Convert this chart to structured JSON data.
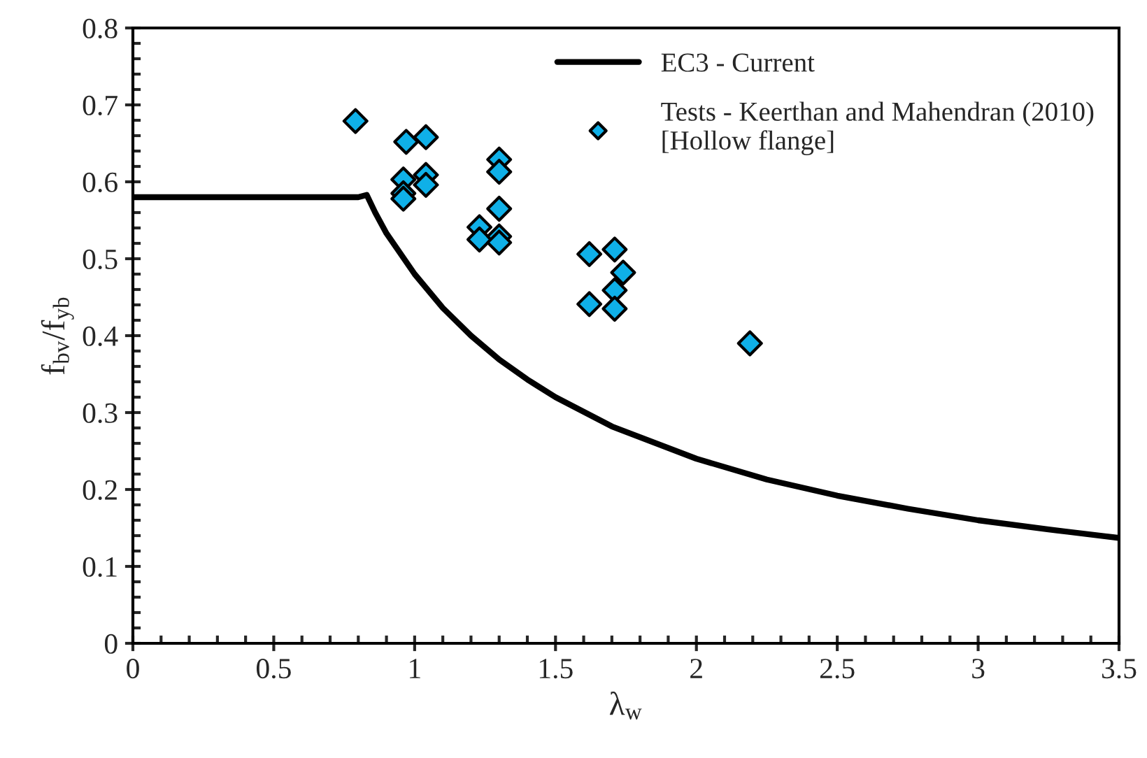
{
  "chart_data": {
    "type": "scatter",
    "xlabel": "λ$_{w}$",
    "ylabel": "f$_{bv}$/f$_{yb}$",
    "xlim": [
      0,
      3.5
    ],
    "xticks": [
      0,
      0.5,
      1,
      1.5,
      2,
      2.5,
      3,
      3.5
    ],
    "ylim": [
      0,
      0.8
    ],
    "yticks": [
      0,
      0.1,
      0.2,
      0.3,
      0.4,
      0.5,
      0.6,
      0.7,
      0.8
    ],
    "grid": false,
    "legend": "top right",
    "series": [
      {
        "name": "EC3 - Current",
        "type": "line",
        "color": "#000000",
        "marker": "none",
        "line_style": "solid",
        "x": [
          0,
          0.8,
          0.83,
          0.86,
          0.9,
          1,
          1.1,
          1.2,
          1.3,
          1.4,
          1.5,
          1.7,
          2,
          2.25,
          2.5,
          2.75,
          3,
          3.25,
          3.5
        ],
        "values": [
          0.58,
          0.58,
          0.583,
          0.56,
          0.533,
          0.48,
          0.436,
          0.4,
          0.369,
          0.343,
          0.32,
          0.282,
          0.24,
          0.213,
          0.192,
          0.175,
          0.16,
          0.148,
          0.137
        ]
      },
      {
        "name": "Tests - Keerthan and Mahendran (2010)\n[Hollow flange]",
        "color": "#0fb0e8",
        "marker": "diamond",
        "x": [
          0.79,
          0.97,
          1.04,
          0.96,
          1.04,
          1.04,
          0.96,
          0.96,
          1.3,
          1.3,
          1.3,
          1.23,
          1.23,
          1.3,
          1.3,
          1.62,
          1.71,
          1.74,
          1.71,
          1.62,
          1.71,
          2.19
        ],
        "values": [
          0.679,
          0.652,
          0.658,
          0.603,
          0.609,
          0.596,
          0.585,
          0.578,
          0.629,
          0.613,
          0.565,
          0.541,
          0.525,
          0.529,
          0.521,
          0.506,
          0.512,
          0.482,
          0.459,
          0.441,
          0.435,
          0.39
        ]
      }
    ]
  }
}
